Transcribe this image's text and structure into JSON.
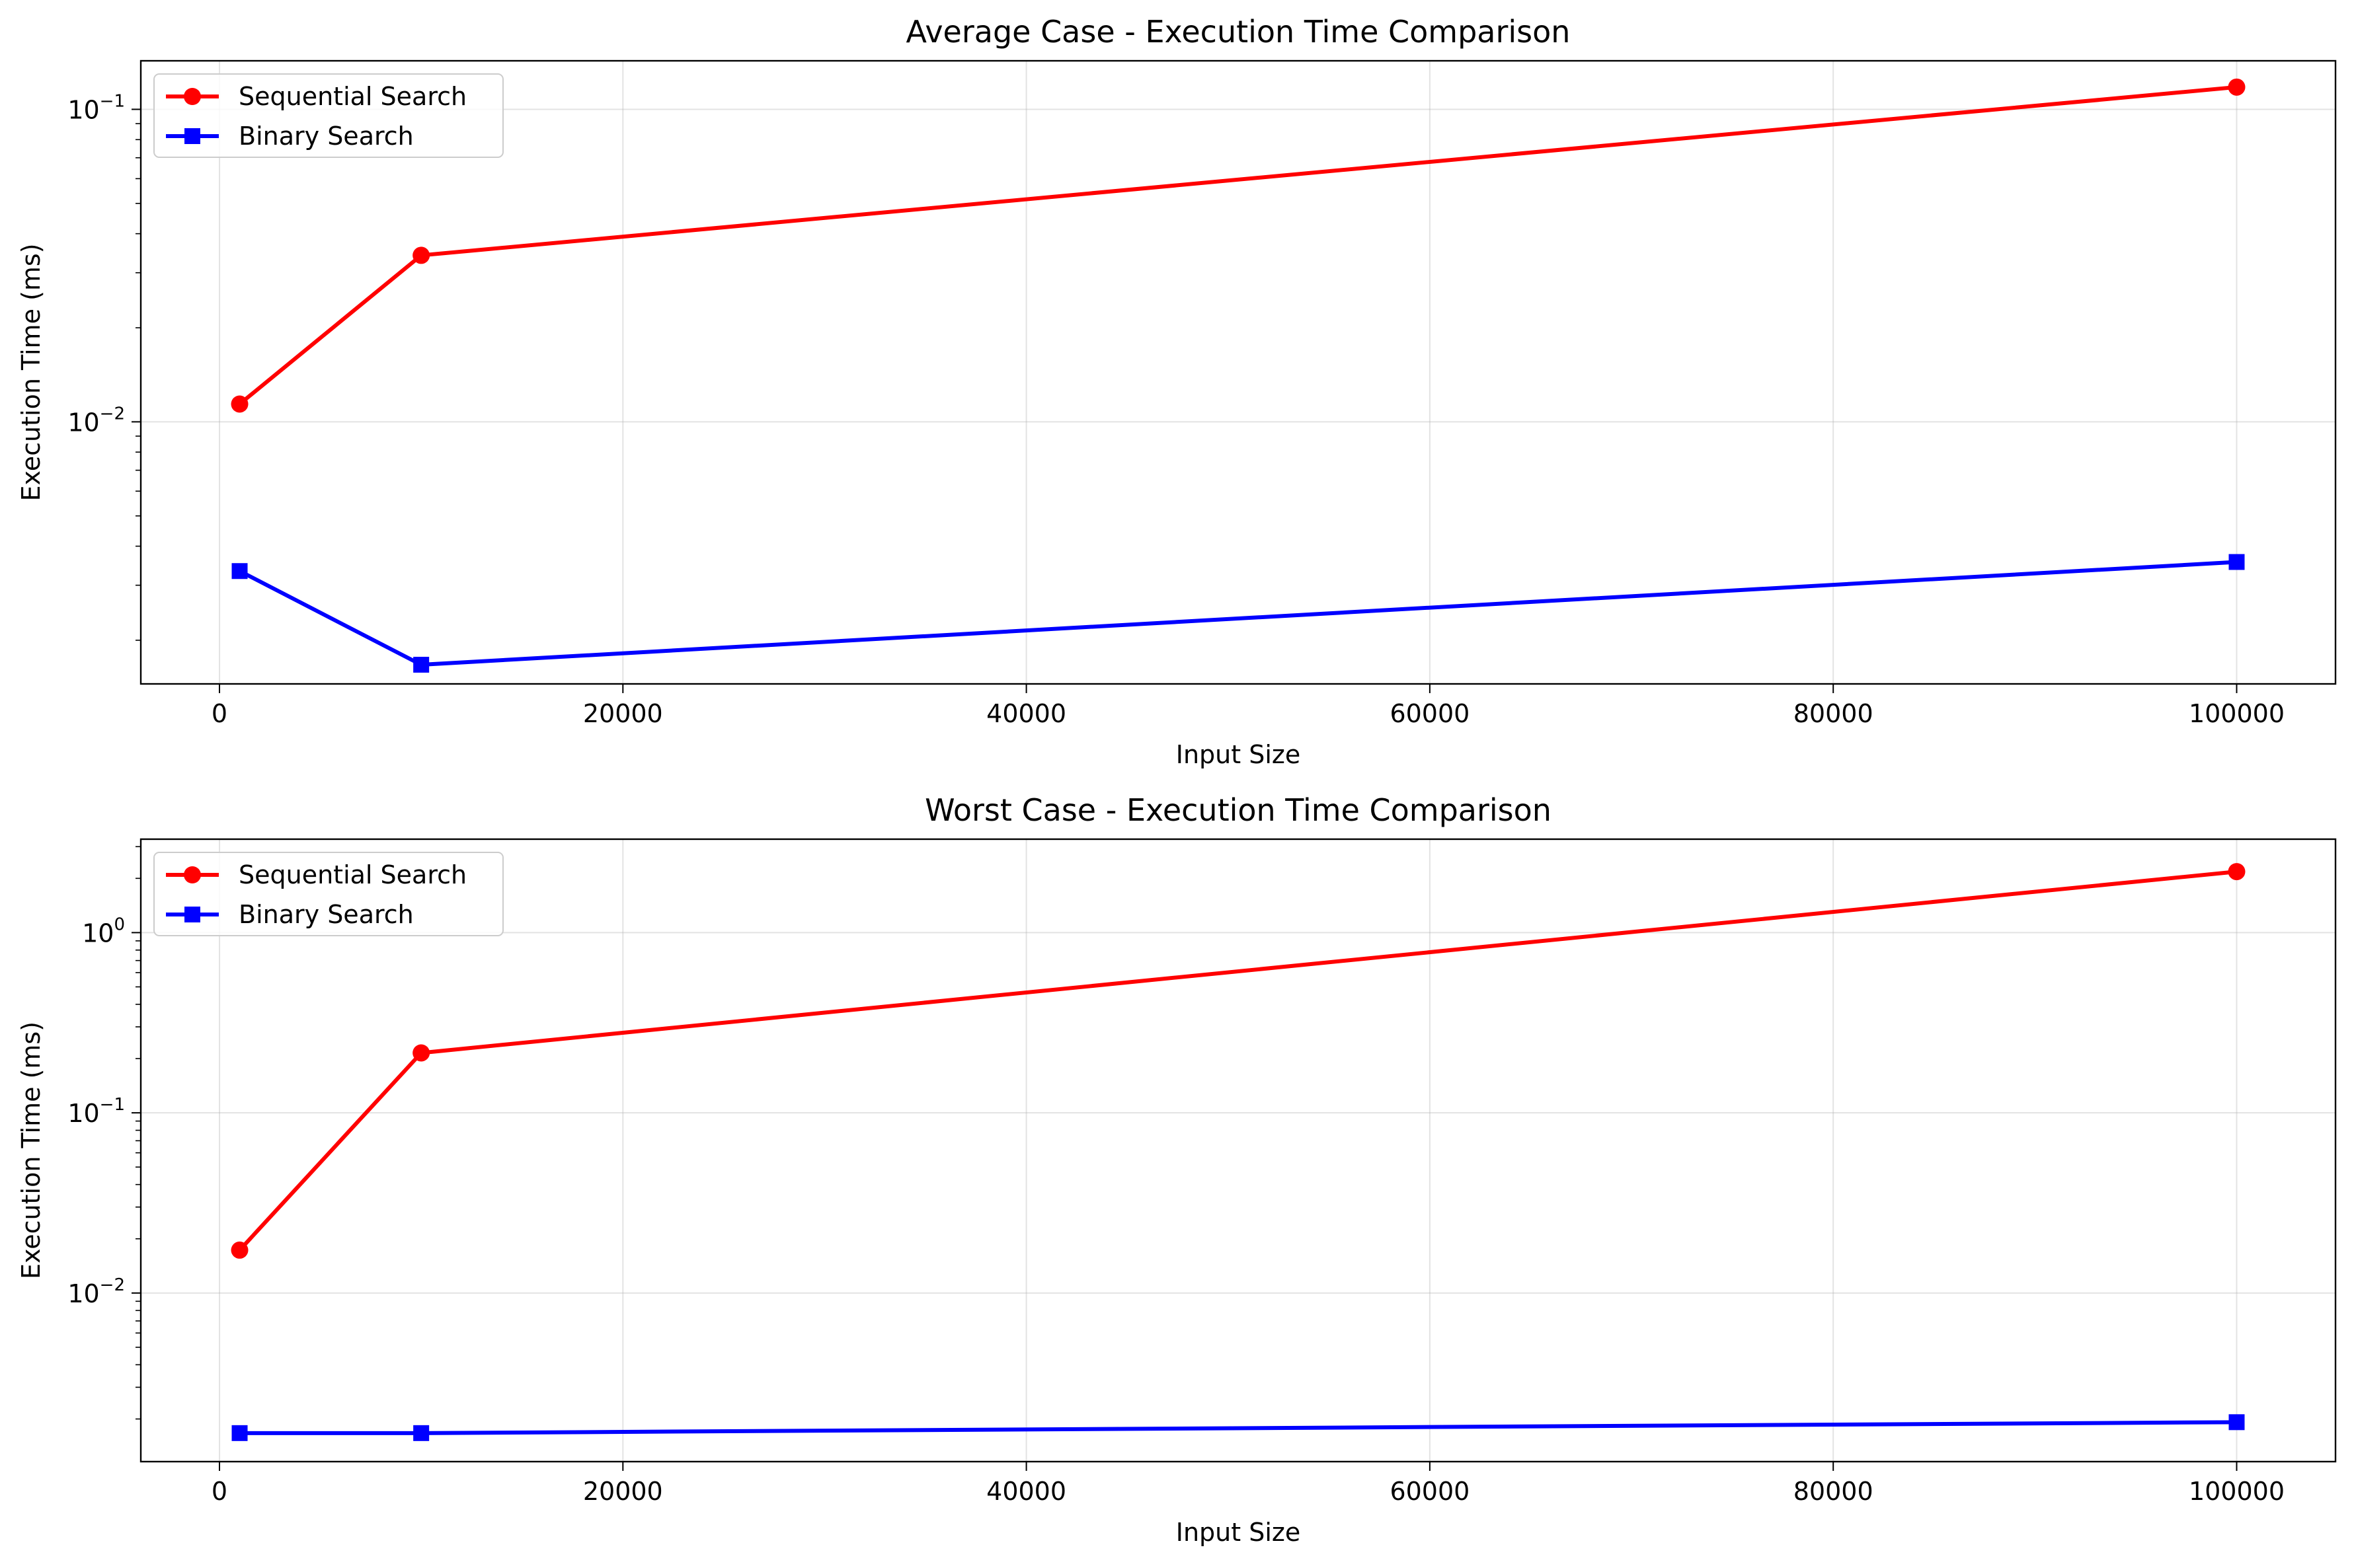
{
  "chart_data": [
    {
      "type": "line",
      "title": "Average Case - Execution Time Comparison",
      "xlabel": "Input Size",
      "ylabel": "Execution Time (ms)",
      "yscale": "log",
      "xlim": [
        -3900,
        104900
      ],
      "ylim": [
        0.00145,
        0.143
      ],
      "grid": true,
      "legend": "top-left",
      "x_ticks": [
        0,
        20000,
        40000,
        60000,
        80000,
        100000
      ],
      "x_tick_labels": [
        "0",
        "20000",
        "40000",
        "60000",
        "80000",
        "100000"
      ],
      "y_ticks": [
        0.01,
        0.1
      ],
      "y_tick_labels": [
        {
          "base": "10",
          "exp": "−2"
        },
        {
          "base": "10",
          "exp": "−1"
        }
      ],
      "x": [
        1000,
        10000,
        100000
      ],
      "series": [
        {
          "name": "Sequential Search",
          "values": [
            0.0114,
            0.0341,
            0.1178
          ],
          "color": "#ff0000",
          "marker": "circle"
        },
        {
          "name": "Binary Search",
          "values": [
            0.00333,
            0.00167,
            0.00356
          ],
          "color": "#0000ff",
          "marker": "square"
        }
      ]
    },
    {
      "type": "line",
      "title": "Worst Case - Execution Time Comparison",
      "xlabel": "Input Size",
      "ylabel": "Execution Time (ms)",
      "yscale": "log",
      "xlim": [
        -3900,
        104900
      ],
      "ylim": [
        0.00116,
        3.3
      ],
      "grid": true,
      "legend": "top-left",
      "x_ticks": [
        0,
        20000,
        40000,
        60000,
        80000,
        100000
      ],
      "x_tick_labels": [
        "0",
        "20000",
        "40000",
        "60000",
        "80000",
        "100000"
      ],
      "y_ticks": [
        0.01,
        0.1,
        1
      ],
      "y_tick_labels": [
        {
          "base": "10",
          "exp": "−2"
        },
        {
          "base": "10",
          "exp": "−1"
        },
        {
          "base": "10",
          "exp": "0"
        }
      ],
      "x": [
        1000,
        10000,
        100000
      ],
      "series": [
        {
          "name": "Sequential Search",
          "values": [
            0.0173,
            0.215,
            2.18
          ],
          "color": "#ff0000",
          "marker": "circle"
        },
        {
          "name": "Binary Search",
          "values": [
            0.00167,
            0.00167,
            0.00192
          ],
          "color": "#0000ff",
          "marker": "square"
        }
      ]
    }
  ]
}
